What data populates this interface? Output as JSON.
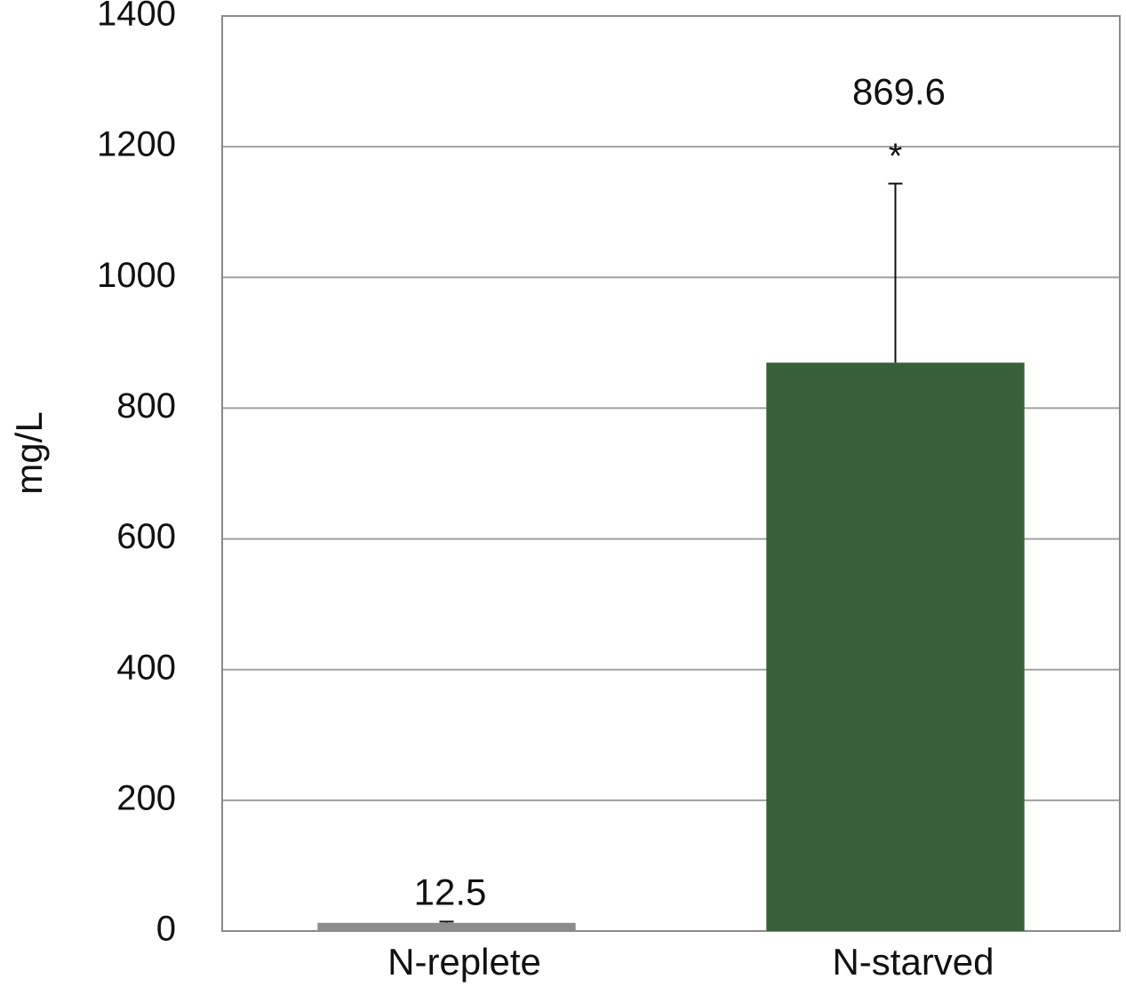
{
  "chart_data": {
    "type": "bar",
    "y_label": "mg/L",
    "categories": [
      "N-replete",
      "N-starved"
    ],
    "values": [
      12.5,
      869.6
    ],
    "errors": [
      2,
      274
    ],
    "significance": [
      null,
      "*"
    ],
    "colors": [
      "#8c8c8c",
      "#376038"
    ],
    "ylim": [
      0,
      1400
    ],
    "yticks": [
      0,
      200,
      400,
      600,
      800,
      1000,
      1200,
      1400
    ],
    "grid": true
  }
}
